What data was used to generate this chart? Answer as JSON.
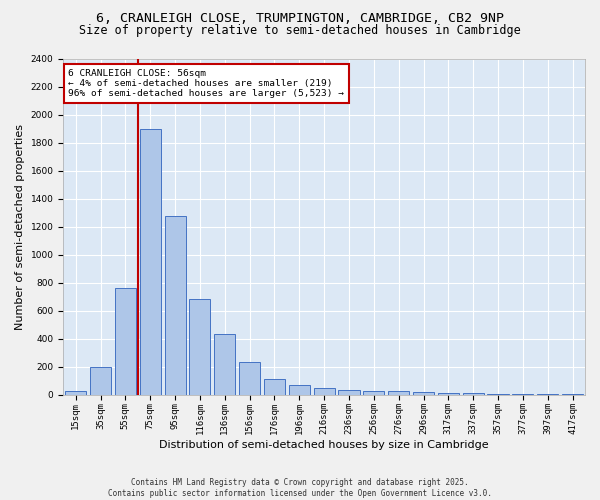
{
  "title_line1": "6, CRANLEIGH CLOSE, TRUMPINGTON, CAMBRIDGE, CB2 9NP",
  "title_line2": "Size of property relative to semi-detached houses in Cambridge",
  "xlabel": "Distribution of semi-detached houses by size in Cambridge",
  "ylabel": "Number of semi-detached properties",
  "categories": [
    "15sqm",
    "35sqm",
    "55sqm",
    "75sqm",
    "95sqm",
    "116sqm",
    "136sqm",
    "156sqm",
    "176sqm",
    "196sqm",
    "216sqm",
    "236sqm",
    "256sqm",
    "276sqm",
    "296sqm",
    "317sqm",
    "337sqm",
    "357sqm",
    "377sqm",
    "397sqm",
    "417sqm"
  ],
  "values": [
    25,
    200,
    760,
    1900,
    1275,
    685,
    430,
    230,
    110,
    70,
    45,
    35,
    28,
    22,
    18,
    14,
    10,
    7,
    5,
    3,
    2
  ],
  "bar_color": "#aec6e8",
  "bar_edge_color": "#4472c4",
  "vline_x": 2.5,
  "vline_color": "#c00000",
  "annotation_text": "6 CRANLEIGH CLOSE: 56sqm\n← 4% of semi-detached houses are smaller (219)\n96% of semi-detached houses are larger (5,523) →",
  "annotation_box_color": "#ffffff",
  "annotation_edge_color": "#c00000",
  "ylim": [
    0,
    2400
  ],
  "yticks": [
    0,
    200,
    400,
    600,
    800,
    1000,
    1200,
    1400,
    1600,
    1800,
    2000,
    2200,
    2400
  ],
  "background_color": "#dce8f5",
  "fig_background_color": "#f0f0f0",
  "footer_text": "Contains HM Land Registry data © Crown copyright and database right 2025.\nContains public sector information licensed under the Open Government Licence v3.0.",
  "title_fontsize": 9.5,
  "subtitle_fontsize": 8.5,
  "tick_fontsize": 6.5,
  "label_fontsize": 8,
  "footer_fontsize": 5.5
}
